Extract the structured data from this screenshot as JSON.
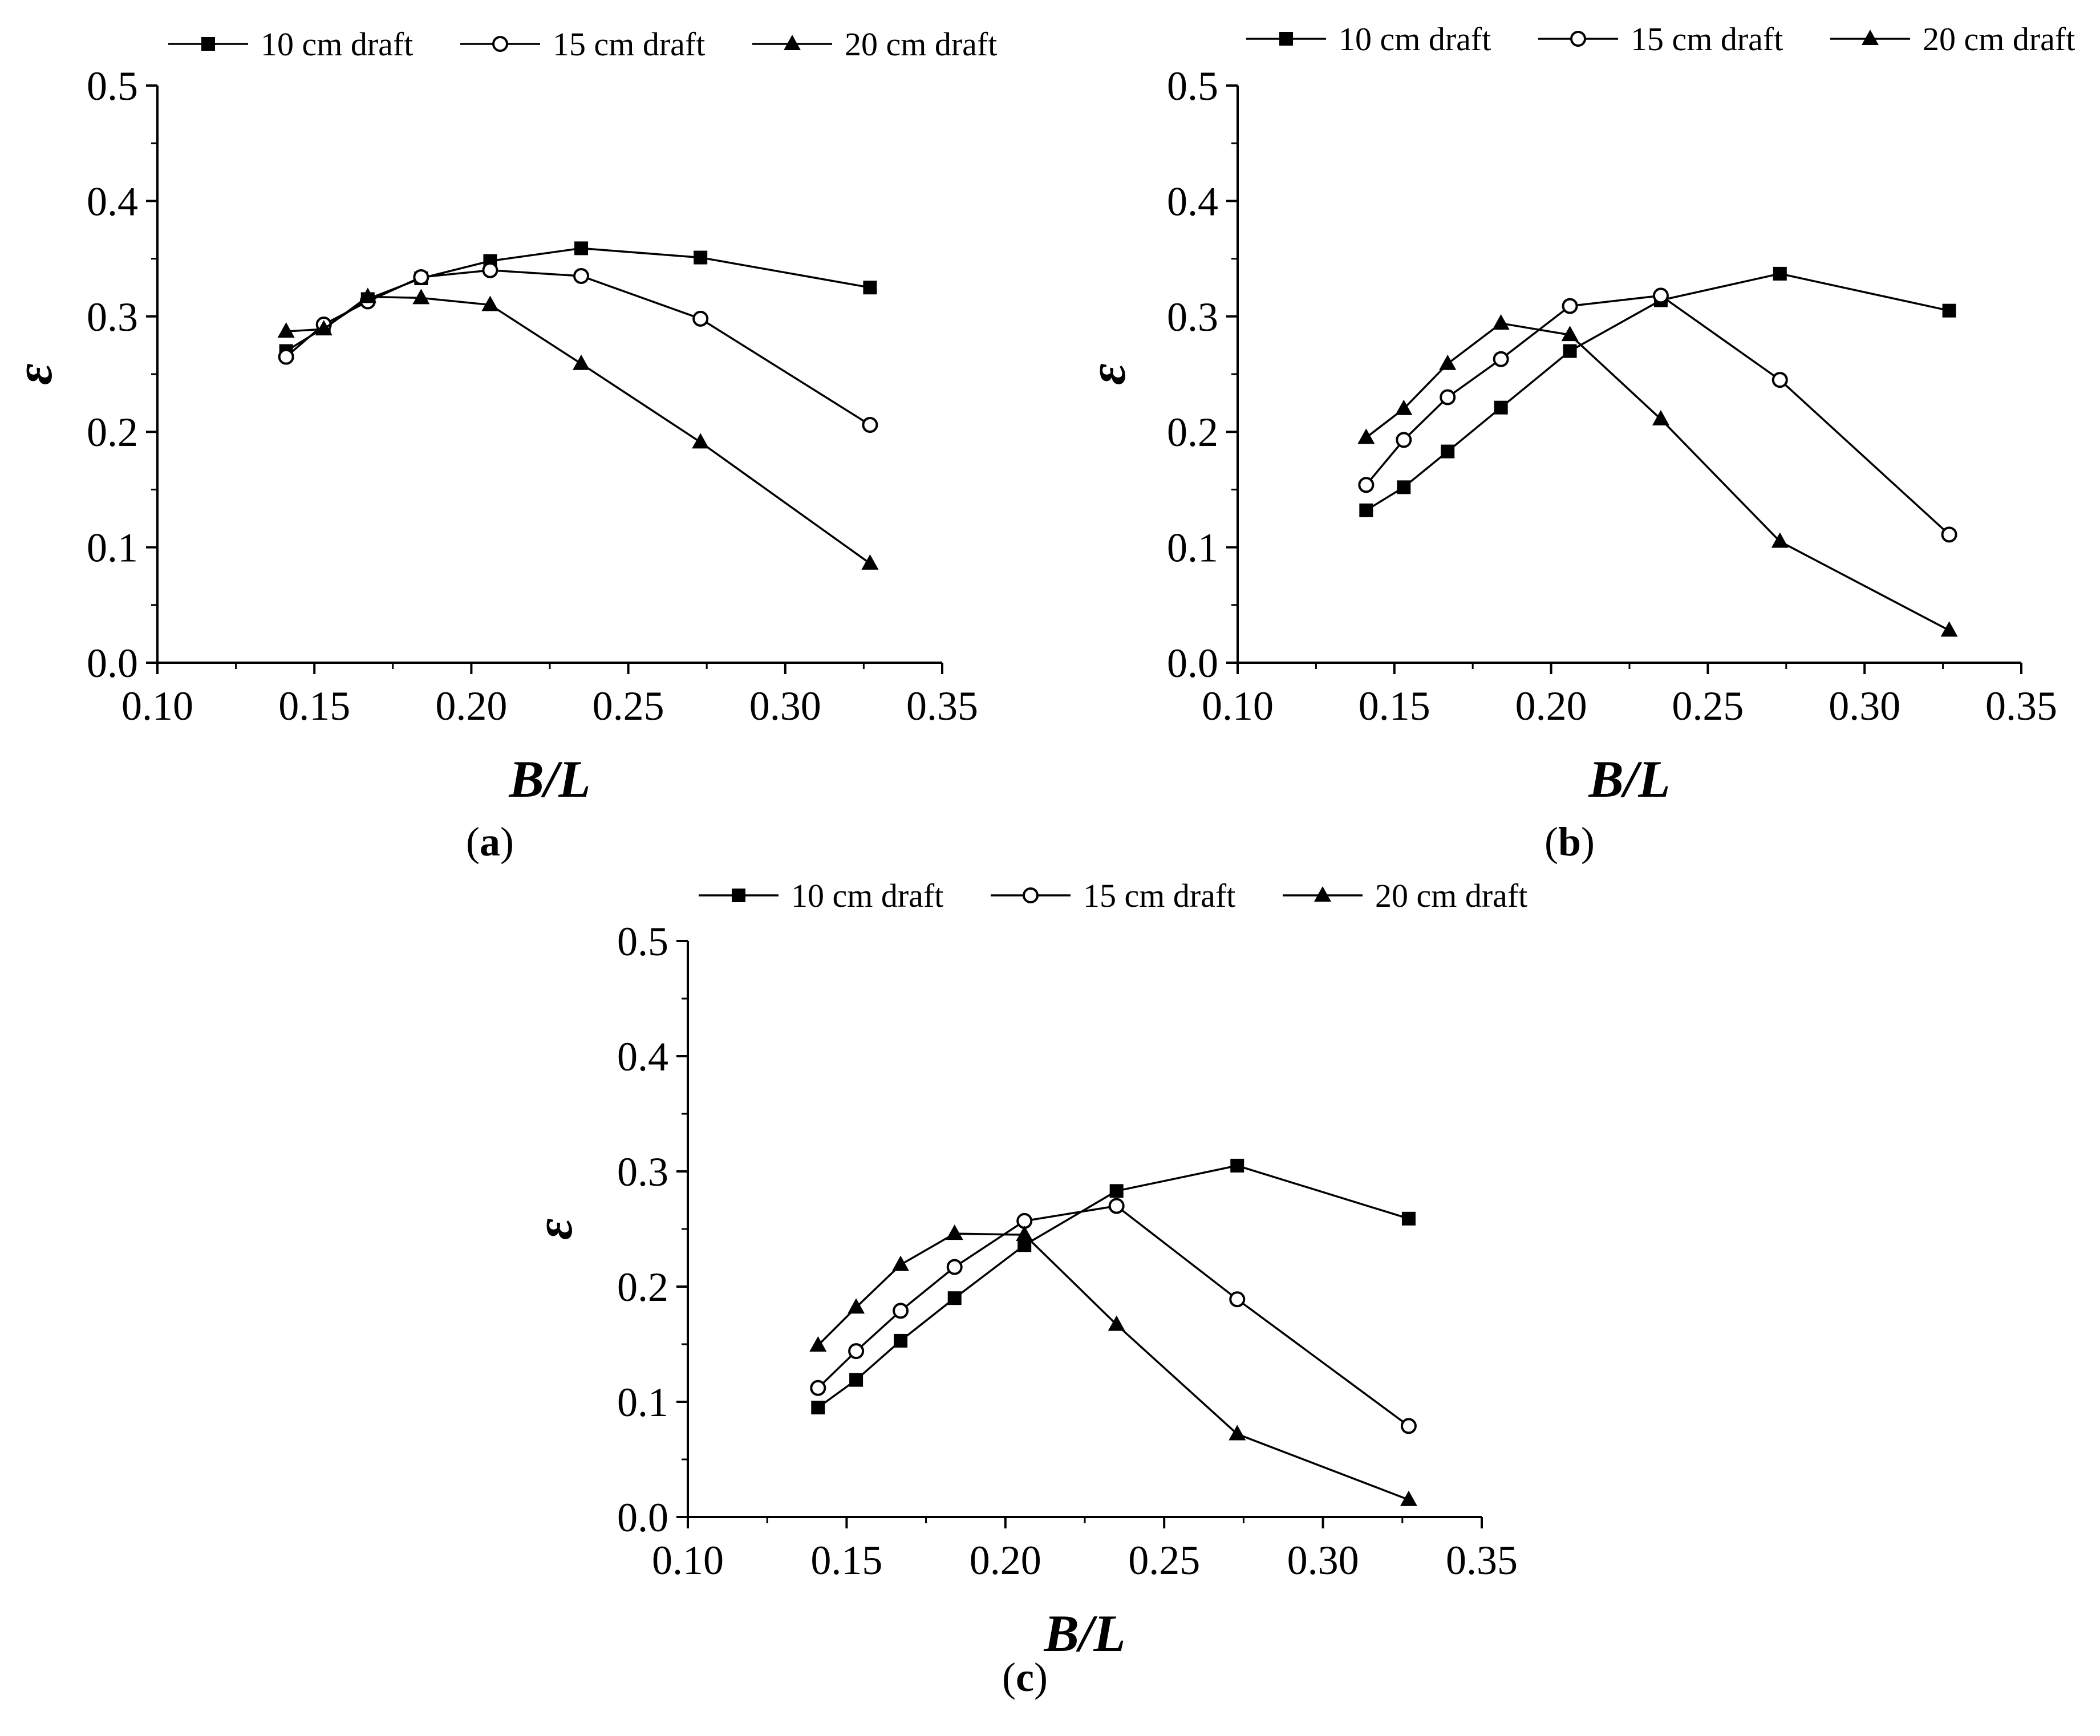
{
  "figure": {
    "panels": [
      {
        "id": "a",
        "label": "a",
        "chart_data": {
          "type": "line",
          "xlabel": "B/L",
          "ylabel": "ε",
          "xlim": [
            0.1,
            0.35
          ],
          "ylim": [
            0.0,
            0.5
          ],
          "xticks": [
            0.1,
            0.15,
            0.2,
            0.25,
            0.3,
            0.35
          ],
          "xtick_labels": [
            "0.10",
            "0.15",
            "0.20",
            "0.25",
            "0.30",
            "0.35"
          ],
          "yticks": [
            0.0,
            0.1,
            0.2,
            0.3,
            0.4,
            0.5
          ],
          "ytick_labels": [
            "0.0",
            "0.1",
            "0.2",
            "0.3",
            "0.4",
            "0.5"
          ],
          "legend_position": "top",
          "series": [
            {
              "name": "10 cm draft",
              "marker": "square",
              "x": [
                0.141,
                0.153,
                0.167,
                0.184,
                0.206,
                0.235,
                0.273,
                0.327
              ],
              "values": [
                0.27,
                0.29,
                0.315,
                0.333,
                0.348,
                0.359,
                0.351,
                0.325
              ]
            },
            {
              "name": "15 cm draft",
              "marker": "circle-open",
              "x": [
                0.141,
                0.153,
                0.167,
                0.184,
                0.206,
                0.235,
                0.273,
                0.327
              ],
              "values": [
                0.265,
                0.293,
                0.313,
                0.334,
                0.34,
                0.335,
                0.298,
                0.206
              ]
            },
            {
              "name": "20 cm draft",
              "marker": "triangle",
              "x": [
                0.141,
                0.153,
                0.167,
                0.184,
                0.206,
                0.235,
                0.273,
                0.327
              ],
              "values": [
                0.287,
                0.289,
                0.317,
                0.316,
                0.31,
                0.259,
                0.191,
                0.086
              ]
            }
          ]
        }
      },
      {
        "id": "b",
        "label": "b",
        "chart_data": {
          "type": "line",
          "xlabel": "B/L",
          "ylabel": "ε",
          "xlim": [
            0.1,
            0.35
          ],
          "ylim": [
            0.0,
            0.5
          ],
          "xticks": [
            0.1,
            0.15,
            0.2,
            0.25,
            0.3,
            0.35
          ],
          "xtick_labels": [
            "0.10",
            "0.15",
            "0.20",
            "0.25",
            "0.30",
            "0.35"
          ],
          "yticks": [
            0.0,
            0.1,
            0.2,
            0.3,
            0.4,
            0.5
          ],
          "ytick_labels": [
            "0.0",
            "0.1",
            "0.2",
            "0.3",
            "0.4",
            "0.5"
          ],
          "legend_position": "top",
          "series": [
            {
              "name": "10 cm draft",
              "marker": "square",
              "x": [
                0.141,
                0.153,
                0.167,
                0.184,
                0.206,
                0.235,
                0.273,
                0.327
              ],
              "values": [
                0.132,
                0.152,
                0.183,
                0.221,
                0.27,
                0.314,
                0.337,
                0.305
              ]
            },
            {
              "name": "15 cm draft",
              "marker": "circle-open",
              "x": [
                0.141,
                0.153,
                0.167,
                0.184,
                0.206,
                0.235,
                0.273,
                0.327
              ],
              "values": [
                0.154,
                0.193,
                0.23,
                0.263,
                0.309,
                0.318,
                0.245,
                0.111
              ]
            },
            {
              "name": "20 cm draft",
              "marker": "triangle",
              "x": [
                0.141,
                0.153,
                0.167,
                0.184,
                0.206,
                0.235,
                0.273,
                0.327
              ],
              "values": [
                0.195,
                0.22,
                0.259,
                0.294,
                0.284,
                0.211,
                0.105,
                0.028
              ]
            }
          ]
        }
      },
      {
        "id": "c",
        "label": "c",
        "chart_data": {
          "type": "line",
          "xlabel": "B/L",
          "ylabel": "ε",
          "xlim": [
            0.1,
            0.35
          ],
          "ylim": [
            0.0,
            0.5
          ],
          "xticks": [
            0.1,
            0.15,
            0.2,
            0.25,
            0.3,
            0.35
          ],
          "xtick_labels": [
            "0.10",
            "0.15",
            "0.20",
            "0.25",
            "0.30",
            "0.35"
          ],
          "yticks": [
            0.0,
            0.1,
            0.2,
            0.3,
            0.4,
            0.5
          ],
          "ytick_labels": [
            "0.0",
            "0.1",
            "0.2",
            "0.3",
            "0.4",
            "0.5"
          ],
          "legend_position": "top",
          "series": [
            {
              "name": "10 cm draft",
              "marker": "square",
              "x": [
                0.141,
                0.153,
                0.167,
                0.184,
                0.206,
                0.235,
                0.273,
                0.327
              ],
              "values": [
                0.095,
                0.119,
                0.153,
                0.19,
                0.236,
                0.283,
                0.305,
                0.259
              ]
            },
            {
              "name": "15 cm draft",
              "marker": "circle-open",
              "x": [
                0.141,
                0.153,
                0.167,
                0.184,
                0.206,
                0.235,
                0.273,
                0.327
              ],
              "values": [
                0.112,
                0.144,
                0.179,
                0.217,
                0.257,
                0.27,
                0.189,
                0.079
              ]
            },
            {
              "name": "20 cm draft",
              "marker": "triangle",
              "x": [
                0.141,
                0.153,
                0.167,
                0.184,
                0.206,
                0.235,
                0.273,
                0.327
              ],
              "values": [
                0.149,
                0.182,
                0.219,
                0.246,
                0.245,
                0.167,
                0.072,
                0.015
              ]
            }
          ]
        }
      }
    ]
  }
}
